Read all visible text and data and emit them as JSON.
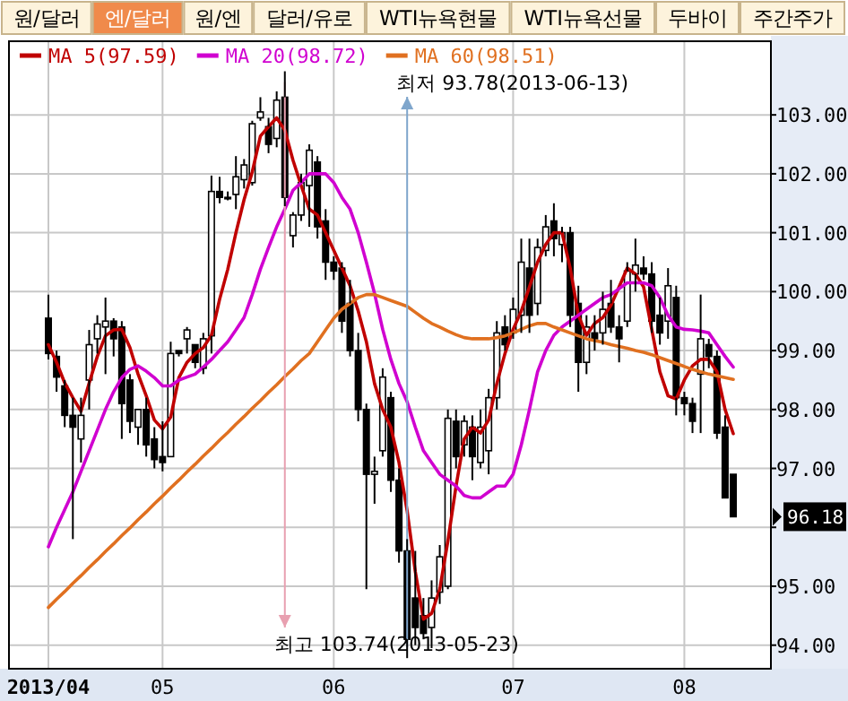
{
  "chart_data": {
    "type": "candlestick",
    "categories": [
      "2013/04",
      null,
      null,
      null,
      null,
      null,
      null,
      null,
      null,
      null,
      null,
      null,
      null,
      null,
      "05",
      null,
      null,
      null,
      null,
      null,
      null,
      null,
      null,
      null,
      null,
      null,
      null,
      null,
      null,
      null,
      null,
      null,
      null,
      null,
      null,
      "06",
      null,
      null,
      null,
      null,
      null,
      null,
      null,
      null,
      null,
      null,
      null,
      null,
      null,
      null,
      null,
      null,
      null,
      null,
      null,
      null,
      null,
      "07",
      null,
      null,
      null,
      null,
      null,
      null,
      null,
      null,
      null,
      null,
      null,
      null,
      null,
      null,
      null,
      null,
      null,
      null,
      null,
      null,
      "08",
      null,
      null,
      null,
      null,
      null,
      null
    ],
    "ohlc": [
      [
        99.55,
        99.95,
        98.85,
        98.95
      ],
      [
        98.9,
        99.0,
        98.3,
        98.55
      ],
      [
        98.4,
        98.5,
        97.7,
        97.9
      ],
      [
        97.9,
        98.2,
        95.8,
        97.7
      ],
      [
        97.5,
        98.2,
        97.1,
        97.9
      ],
      [
        98.5,
        99.35,
        98.0,
        99.1
      ],
      [
        99.2,
        99.6,
        98.95,
        99.45
      ],
      [
        99.4,
        99.9,
        98.6,
        99.5
      ],
      [
        99.5,
        99.55,
        98.9,
        99.2
      ],
      [
        99.4,
        99.5,
        97.5,
        98.1
      ],
      [
        98.5,
        98.6,
        97.6,
        97.8
      ],
      [
        97.7,
        98.0,
        97.4,
        98.0
      ],
      [
        98.0,
        98.2,
        97.2,
        97.4
      ],
      [
        97.5,
        97.7,
        97.0,
        97.15
      ],
      [
        97.2,
        97.8,
        96.95,
        97.1
      ],
      [
        97.2,
        99.15,
        97.2,
        98.95
      ],
      [
        99.0,
        99.0,
        98.9,
        98.95
      ],
      [
        99.2,
        99.4,
        98.95,
        99.35
      ],
      [
        99.1,
        99.1,
        98.7,
        98.8
      ],
      [
        98.7,
        99.3,
        98.6,
        99.2
      ],
      [
        99.25,
        101.97,
        98.95,
        101.7
      ],
      [
        101.7,
        101.95,
        101.5,
        101.6
      ],
      [
        101.6,
        101.7,
        101.55,
        101.6
      ],
      [
        101.65,
        102.3,
        101.4,
        101.95
      ],
      [
        101.9,
        102.25,
        101.75,
        102.15
      ],
      [
        101.85,
        102.9,
        101.8,
        102.85
      ],
      [
        102.95,
        103.3,
        102.9,
        103.05
      ],
      [
        102.8,
        102.95,
        102.35,
        102.5
      ],
      [
        102.6,
        103.4,
        102.45,
        103.25
      ],
      [
        103.3,
        103.74,
        101.45,
        101.6
      ],
      [
        100.95,
        101.35,
        100.75,
        101.3
      ],
      [
        101.3,
        102.0,
        101.2,
        101.85
      ],
      [
        101.8,
        102.5,
        101.1,
        102.4
      ],
      [
        102.2,
        102.3,
        100.9,
        101.1
      ],
      [
        101.2,
        101.4,
        100.2,
        100.5
      ],
      [
        100.5,
        100.6,
        100.2,
        100.35
      ],
      [
        100.4,
        100.5,
        99.3,
        99.5
      ],
      [
        99.8,
        100.2,
        98.9,
        99.0
      ],
      [
        99.0,
        99.3,
        97.8,
        98.0
      ],
      [
        98.0,
        98.1,
        94.95,
        96.9
      ],
      [
        96.9,
        97.2,
        96.4,
        96.95
      ],
      [
        97.3,
        98.7,
        97.2,
        98.55
      ],
      [
        98.2,
        98.3,
        96.6,
        96.8
      ],
      [
        96.8,
        97.0,
        95.4,
        95.6
      ],
      [
        95.6,
        95.8,
        93.78,
        94.1
      ],
      [
        94.8,
        95.6,
        94.0,
        94.3
      ],
      [
        94.5,
        94.8,
        94.1,
        94.2
      ],
      [
        94.3,
        95.1,
        93.95,
        94.8
      ],
      [
        94.9,
        95.7,
        94.7,
        95.5
      ],
      [
        95.0,
        98.0,
        94.95,
        97.85
      ],
      [
        97.8,
        98.0,
        97.0,
        97.2
      ],
      [
        97.4,
        97.9,
        97.2,
        97.8
      ],
      [
        97.7,
        97.9,
        96.8,
        97.2
      ],
      [
        97.1,
        98.0,
        97.0,
        97.7
      ],
      [
        97.3,
        98.35,
        96.9,
        98.2
      ],
      [
        98.2,
        99.5,
        98.0,
        99.3
      ],
      [
        99.4,
        99.6,
        99.0,
        99.1
      ],
      [
        99.3,
        99.9,
        99.2,
        99.7
      ],
      [
        99.6,
        100.9,
        99.3,
        100.5
      ],
      [
        100.4,
        100.9,
        99.3,
        99.6
      ],
      [
        99.8,
        100.9,
        99.6,
        100.75
      ],
      [
        100.7,
        101.3,
        100.6,
        101.1
      ],
      [
        101.2,
        101.5,
        100.6,
        100.9
      ],
      [
        100.8,
        101.1,
        100.5,
        101.0
      ],
      [
        101.0,
        101.1,
        99.4,
        99.6
      ],
      [
        99.8,
        100.1,
        98.3,
        98.8
      ],
      [
        98.8,
        99.6,
        98.6,
        99.4
      ],
      [
        99.3,
        99.6,
        99.0,
        99.2
      ],
      [
        99.3,
        100.0,
        99.1,
        99.7
      ],
      [
        99.8,
        100.2,
        99.3,
        99.4
      ],
      [
        99.4,
        99.6,
        98.8,
        99.2
      ],
      [
        99.5,
        100.5,
        99.4,
        100.35
      ],
      [
        100.3,
        100.9,
        100.0,
        100.45
      ],
      [
        100.4,
        100.6,
        100.2,
        100.3
      ],
      [
        100.3,
        100.5,
        99.3,
        99.5
      ],
      [
        99.6,
        99.9,
        99.1,
        99.3
      ],
      [
        99.5,
        100.4,
        99.2,
        100.1
      ],
      [
        99.9,
        100.1,
        97.9,
        98.2
      ],
      [
        98.2,
        98.3,
        97.9,
        98.1
      ],
      [
        98.1,
        98.2,
        97.6,
        97.8
      ],
      [
        98.6,
        99.95,
        97.6,
        99.2
      ],
      [
        99.1,
        99.2,
        98.7,
        98.9
      ],
      [
        98.9,
        99.0,
        97.5,
        97.6
      ],
      [
        97.7,
        97.9,
        96.5,
        96.5
      ],
      [
        96.9,
        96.9,
        96.18,
        96.18
      ]
    ],
    "series": [
      {
        "name": "MA 5(97.59)",
        "type": "line",
        "color": "#c00000",
        "values": [
          99.1,
          98.8,
          98.45,
          98.2,
          97.97,
          98.45,
          98.9,
          99.25,
          99.35,
          99.36,
          99.05,
          98.6,
          98.23,
          97.82,
          97.67,
          97.87,
          98.54,
          98.8,
          98.95,
          99.05,
          99.26,
          99.87,
          100.38,
          101.0,
          101.56,
          102.03,
          102.64,
          102.8,
          102.95,
          102.74,
          102.23,
          101.8,
          101.4,
          101.3,
          101.0,
          100.7,
          100.4,
          100.1,
          99.67,
          99.15,
          98.44,
          98.0,
          97.7,
          97.1,
          96.28,
          95.25,
          94.44,
          94.54,
          94.95,
          95.77,
          96.7,
          97.5,
          97.7,
          97.6,
          97.82,
          98.44,
          98.95,
          99.36,
          99.67,
          100.08,
          100.5,
          100.8,
          101.0,
          101.0,
          100.4,
          99.6,
          99.26,
          99.46,
          99.56,
          99.77,
          100.08,
          100.4,
          100.3,
          100.08,
          99.36,
          98.64,
          98.23,
          98.18,
          98.5,
          98.74,
          98.85,
          98.85,
          98.64,
          98.0,
          97.59
        ]
      },
      {
        "name": "MA 20(98.72)",
        "type": "line",
        "color": "#d000d0",
        "values": [
          95.67,
          96.0,
          96.3,
          96.6,
          96.95,
          97.3,
          97.65,
          98.0,
          98.3,
          98.54,
          98.68,
          98.74,
          98.65,
          98.54,
          98.4,
          98.4,
          98.5,
          98.55,
          98.6,
          98.72,
          98.85,
          99.0,
          99.15,
          99.35,
          99.56,
          99.95,
          100.38,
          100.75,
          101.1,
          101.4,
          101.72,
          101.85,
          102.0,
          102.0,
          102.0,
          101.85,
          101.6,
          101.4,
          101.0,
          100.5,
          99.97,
          99.36,
          98.85,
          98.44,
          98.13,
          97.7,
          97.3,
          97.1,
          96.9,
          96.8,
          96.7,
          96.54,
          96.5,
          96.5,
          96.6,
          96.7,
          96.7,
          96.9,
          97.4,
          98.0,
          98.64,
          99.0,
          99.26,
          99.4,
          99.5,
          99.6,
          99.7,
          99.8,
          99.9,
          99.95,
          100.05,
          100.15,
          100.15,
          100.15,
          100.1,
          99.9,
          99.6,
          99.4,
          99.36,
          99.35,
          99.33,
          99.3,
          99.1,
          98.9,
          98.72
        ]
      },
      {
        "name": "MA 60(98.51)",
        "type": "line",
        "color": "#e07020",
        "values": [
          94.64,
          94.78,
          94.91,
          95.05,
          95.18,
          95.32,
          95.45,
          95.59,
          95.72,
          95.86,
          95.99,
          96.13,
          96.26,
          96.4,
          96.53,
          96.67,
          96.8,
          96.94,
          97.07,
          97.21,
          97.34,
          97.48,
          97.61,
          97.75,
          97.88,
          98.02,
          98.15,
          98.29,
          98.42,
          98.56,
          98.69,
          98.83,
          98.95,
          99.15,
          99.35,
          99.55,
          99.7,
          99.8,
          99.9,
          99.95,
          99.95,
          99.9,
          99.85,
          99.8,
          99.75,
          99.65,
          99.55,
          99.46,
          99.4,
          99.33,
          99.27,
          99.22,
          99.2,
          99.2,
          99.2,
          99.22,
          99.25,
          99.3,
          99.36,
          99.42,
          99.46,
          99.46,
          99.4,
          99.35,
          99.3,
          99.25,
          99.2,
          99.17,
          99.14,
          99.1,
          99.07,
          99.04,
          99.0,
          98.97,
          98.93,
          98.88,
          98.83,
          98.78,
          98.73,
          98.68,
          98.64,
          98.6,
          98.57,
          98.54,
          98.51
        ]
      }
    ],
    "ylim": [
      93.6,
      104.25
    ],
    "yticks": [
      {
        "value": 94,
        "label": "94.00"
      },
      {
        "value": 95,
        "label": "95.00"
      },
      {
        "value": 96,
        "label": null
      },
      {
        "value": 97,
        "label": "97.00"
      },
      {
        "value": 98,
        "label": "98.00"
      },
      {
        "value": 99,
        "label": "99.00"
      },
      {
        "value": 100,
        "label": "100.00"
      },
      {
        "value": 101,
        "label": "101.00"
      },
      {
        "value": 102,
        "label": "102.00"
      },
      {
        "value": 103,
        "label": "103.00"
      }
    ],
    "grid": true,
    "legend": "top left",
    "annotations": [
      "원/달러",
      "엔/달러",
      "원/엔",
      "달러/유로",
      "WTI뉴욕현물",
      "WTI뉴욕선물",
      "두바이",
      "주간주가",
      "최저 93.78(2013-06-13)",
      "최고 103.74(2013-05-23)",
      "96.18"
    ]
  }
}
